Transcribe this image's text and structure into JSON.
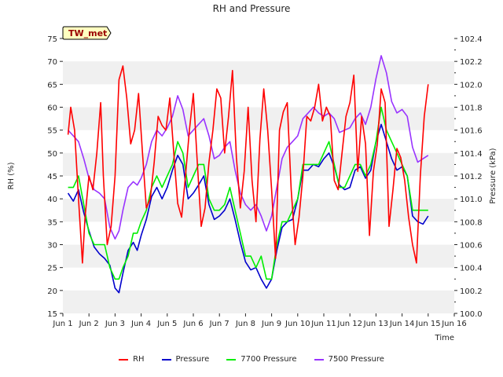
{
  "chart_data": {
    "type": "line",
    "title": "RH and Pressure",
    "site_label": "TW_met",
    "xlabel": "Time",
    "ylabel_left": "RH (%)",
    "ylabel_right": "Pressure (kPa)",
    "xlim": [
      1,
      16
    ],
    "ylim_left": [
      15,
      75
    ],
    "ylim_right": [
      100.0,
      102.4
    ],
    "x_ticks": [
      1,
      2,
      3,
      4,
      5,
      6,
      7,
      8,
      9,
      10,
      11,
      12,
      13,
      14,
      15,
      16
    ],
    "x_tick_labels": [
      "Jun 1",
      "Jun 2",
      "Jun 3",
      "Jun 4",
      "Jun 5",
      "Jun 6",
      "Jun 7",
      "Jun 8",
      "Jun 9",
      "Jun 10",
      "Jun 11",
      "Jun 12",
      "Jun 13",
      "Jun 14",
      "Jun 15",
      "Jun 16"
    ],
    "y_left_ticks": [
      15,
      20,
      25,
      30,
      35,
      40,
      45,
      50,
      55,
      60,
      65,
      70,
      75
    ],
    "y_right_ticks": [
      100.0,
      100.2,
      100.4,
      100.6,
      100.8,
      101.0,
      101.2,
      101.4,
      101.6,
      101.8,
      102.0,
      102.2,
      102.4
    ],
    "grid": "horizontal bands",
    "legend_position": "bottom",
    "series": [
      {
        "name": "RH",
        "axis": "left",
        "color": "#ff0000",
        "x": [
          1.2,
          1.3,
          1.45,
          1.6,
          1.75,
          1.85,
          2.0,
          2.15,
          2.3,
          2.45,
          2.55,
          2.7,
          2.85,
          3.0,
          3.15,
          3.3,
          3.45,
          3.6,
          3.75,
          3.9,
          4.05,
          4.2,
          4.35,
          4.5,
          4.65,
          4.8,
          4.95,
          5.1,
          5.25,
          5.4,
          5.55,
          5.7,
          5.85,
          6.0,
          6.15,
          6.3,
          6.45,
          6.6,
          6.75,
          6.9,
          7.05,
          7.2,
          7.35,
          7.5,
          7.65,
          7.8,
          7.95,
          8.1,
          8.25,
          8.4,
          8.55,
          8.7,
          8.85,
          9.0,
          9.15,
          9.3,
          9.45,
          9.6,
          9.75,
          9.9,
          10.05,
          10.2,
          10.35,
          10.5,
          10.65,
          10.8,
          10.95,
          11.1,
          11.25,
          11.4,
          11.55,
          11.7,
          11.85,
          12.0,
          12.15,
          12.3,
          12.45,
          12.6,
          12.75,
          12.9,
          13.05,
          13.2,
          13.35,
          13.5,
          13.65,
          13.8,
          13.95,
          14.1,
          14.25,
          14.4,
          14.55,
          14.7,
          14.85,
          15.0
        ],
        "values": [
          54,
          60,
          55,
          40,
          26,
          36,
          45,
          42,
          50,
          61,
          45,
          30,
          34,
          45,
          66,
          69,
          62,
          52,
          55,
          63,
          50,
          38,
          40,
          48,
          58,
          56,
          55,
          62,
          50,
          39,
          36,
          45,
          55,
          63,
          48,
          34,
          38,
          48,
          55,
          64,
          62,
          50,
          58,
          68,
          49,
          38,
          46,
          60,
          44,
          35,
          53,
          64,
          55,
          42,
          27,
          55,
          59,
          61,
          42,
          30,
          36,
          45,
          58,
          57,
          60,
          65,
          57,
          60,
          58,
          44,
          42,
          50,
          58,
          61,
          67,
          46,
          58,
          52,
          32,
          46,
          52,
          64,
          61,
          34,
          42,
          51,
          49,
          44,
          36,
          30,
          26,
          45,
          58,
          65
        ]
      },
      {
        "name": "Pressure",
        "axis": "right",
        "color": "#0000cc",
        "x": [
          1.2,
          1.4,
          1.6,
          1.8,
          2.0,
          2.2,
          2.4,
          2.6,
          2.8,
          3.0,
          3.15,
          3.3,
          3.5,
          3.7,
          3.85,
          4.0,
          4.2,
          4.4,
          4.6,
          4.8,
          5.0,
          5.2,
          5.4,
          5.6,
          5.8,
          6.0,
          6.2,
          6.4,
          6.6,
          6.8,
          7.0,
          7.2,
          7.4,
          7.6,
          7.8,
          8.0,
          8.2,
          8.4,
          8.6,
          8.8,
          9.0,
          9.2,
          9.4,
          9.6,
          9.8,
          10.0,
          10.2,
          10.4,
          10.6,
          10.8,
          11.0,
          11.2,
          11.4,
          11.6,
          11.8,
          12.0,
          12.2,
          12.4,
          12.6,
          12.8,
          13.0,
          13.2,
          13.4,
          13.6,
          13.8,
          14.0,
          14.2,
          14.4,
          14.6,
          14.8,
          15.0
        ],
        "values": [
          101.05,
          100.98,
          101.08,
          100.88,
          100.72,
          100.58,
          100.52,
          100.48,
          100.42,
          100.22,
          100.18,
          100.35,
          100.55,
          100.62,
          100.55,
          100.68,
          100.82,
          101.02,
          101.1,
          101.0,
          101.1,
          101.25,
          101.38,
          101.3,
          101.0,
          101.05,
          101.12,
          101.2,
          100.95,
          100.82,
          100.85,
          100.9,
          101.0,
          100.82,
          100.62,
          100.45,
          100.38,
          100.4,
          100.3,
          100.22,
          100.3,
          100.55,
          100.75,
          100.8,
          100.82,
          101.0,
          101.25,
          101.25,
          101.3,
          101.28,
          101.35,
          101.4,
          101.28,
          101.12,
          101.08,
          101.1,
          101.25,
          101.28,
          101.18,
          101.25,
          101.5,
          101.65,
          101.5,
          101.35,
          101.25,
          101.28,
          101.2,
          100.85,
          100.8,
          100.78,
          100.85
        ]
      },
      {
        "name": "7700 Pressure",
        "axis": "right",
        "color": "#00ee00",
        "x": [
          1.2,
          1.4,
          1.6,
          1.8,
          2.0,
          2.2,
          2.4,
          2.6,
          2.8,
          3.0,
          3.15,
          3.3,
          3.5,
          3.7,
          3.85,
          4.0,
          4.2,
          4.4,
          4.6,
          4.8,
          5.0,
          5.2,
          5.4,
          5.6,
          5.8,
          6.0,
          6.2,
          6.4,
          6.6,
          6.8,
          7.0,
          7.2,
          7.4,
          7.6,
          7.8,
          8.0,
          8.2,
          8.4,
          8.6,
          8.8,
          9.0,
          9.2,
          9.4,
          9.6,
          9.8,
          10.0,
          10.2,
          10.4,
          10.6,
          10.8,
          11.0,
          11.2,
          11.4,
          11.6,
          11.8,
          12.0,
          12.2,
          12.4,
          12.6,
          12.8,
          13.0,
          13.2,
          13.4,
          13.6,
          13.8,
          14.0,
          14.2,
          14.4,
          14.6,
          14.8,
          15.0
        ],
        "values": [
          101.1,
          101.1,
          101.2,
          100.95,
          100.7,
          100.6,
          100.6,
          100.6,
          100.4,
          100.3,
          100.3,
          100.4,
          100.5,
          100.7,
          100.7,
          100.8,
          100.9,
          101.1,
          101.2,
          101.1,
          101.2,
          101.3,
          101.5,
          101.4,
          101.1,
          101.2,
          101.3,
          101.3,
          101.0,
          100.9,
          100.9,
          100.95,
          101.1,
          100.9,
          100.7,
          100.5,
          100.5,
          100.4,
          100.5,
          100.3,
          100.3,
          100.6,
          100.8,
          100.8,
          100.9,
          101.0,
          101.3,
          101.3,
          101.3,
          101.3,
          101.4,
          101.5,
          101.3,
          101.1,
          101.1,
          101.2,
          101.3,
          101.3,
          101.2,
          101.3,
          101.5,
          101.8,
          101.6,
          101.5,
          101.4,
          101.3,
          101.2,
          100.9,
          100.9,
          100.9,
          100.9
        ]
      },
      {
        "name": "7500 Pressure",
        "axis": "right",
        "color": "#9933ff",
        "x": [
          1.2,
          1.4,
          1.6,
          1.8,
          2.0,
          2.2,
          2.4,
          2.6,
          2.8,
          3.0,
          3.15,
          3.3,
          3.5,
          3.7,
          3.85,
          4.0,
          4.2,
          4.4,
          4.6,
          4.8,
          5.0,
          5.2,
          5.4,
          5.6,
          5.8,
          6.0,
          6.2,
          6.4,
          6.6,
          6.8,
          7.0,
          7.2,
          7.4,
          7.6,
          7.8,
          8.0,
          8.2,
          8.4,
          8.6,
          8.8,
          9.0,
          9.2,
          9.4,
          9.6,
          9.8,
          10.0,
          10.2,
          10.4,
          10.6,
          10.8,
          11.0,
          11.2,
          11.4,
          11.6,
          11.8,
          12.0,
          12.2,
          12.4,
          12.6,
          12.8,
          13.0,
          13.2,
          13.4,
          13.6,
          13.8,
          14.0,
          14.2,
          14.4,
          14.6,
          14.8,
          15.0
        ],
        "values": [
          101.6,
          101.55,
          101.5,
          101.35,
          101.18,
          101.08,
          101.05,
          101.0,
          100.75,
          100.65,
          100.72,
          100.9,
          101.1,
          101.15,
          101.12,
          101.18,
          101.3,
          101.5,
          101.6,
          101.55,
          101.62,
          101.72,
          101.9,
          101.78,
          101.55,
          101.6,
          101.65,
          101.7,
          101.55,
          101.35,
          101.38,
          101.45,
          101.5,
          101.25,
          101.05,
          100.95,
          100.9,
          100.95,
          100.85,
          100.72,
          100.85,
          101.1,
          101.35,
          101.45,
          101.5,
          101.55,
          101.7,
          101.75,
          101.8,
          101.75,
          101.72,
          101.75,
          101.7,
          101.58,
          101.6,
          101.62,
          101.7,
          101.75,
          101.65,
          101.8,
          102.05,
          102.25,
          102.1,
          101.85,
          101.75,
          101.78,
          101.72,
          101.45,
          101.32,
          101.35,
          101.38
        ]
      }
    ]
  }
}
